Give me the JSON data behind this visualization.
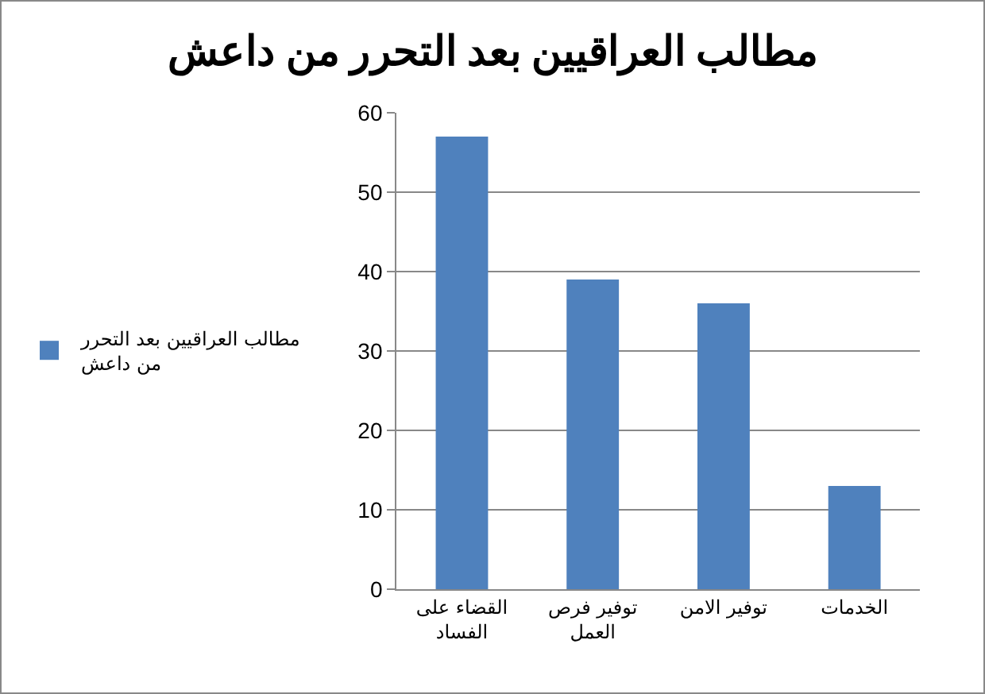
{
  "chart_data": {
    "type": "bar",
    "title": "مطالب العراقيين بعد التحرر من داعش",
    "categories": [
      "القضاء على الفساد",
      "توفير فرص العمل",
      "توفير الامن",
      "الخدمات"
    ],
    "series": [
      {
        "name": "مطالب العراقيين بعد التحرر من داعش",
        "color": "#4f81bd",
        "values": [
          57,
          39,
          36,
          13
        ]
      }
    ],
    "ylim": [
      0,
      60
    ],
    "yticks": [
      0,
      10,
      20,
      30,
      40,
      50,
      60
    ],
    "grid": "y",
    "legend": "left"
  }
}
